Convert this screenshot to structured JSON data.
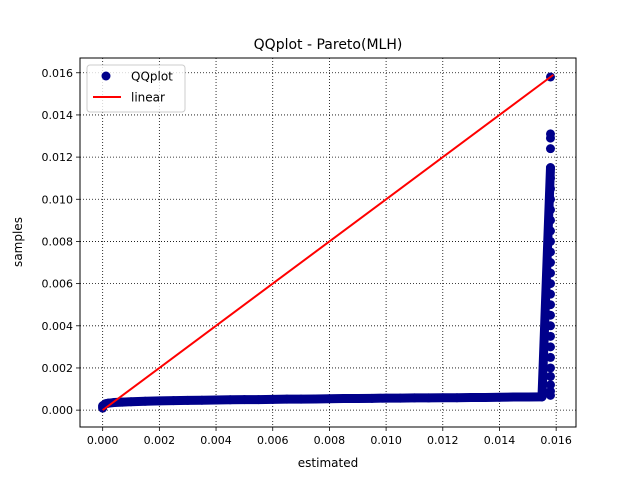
{
  "chart_data": {
    "type": "scatter",
    "title": "QQplot - Pareto(MLH)",
    "xlabel": "estimated",
    "ylabel": "samples",
    "xlim": [
      -0.0008,
      0.0167
    ],
    "ylim": [
      -0.0008,
      0.0167
    ],
    "xticks": [
      "0.000",
      "0.002",
      "0.004",
      "0.006",
      "0.008",
      "0.010",
      "0.012",
      "0.014",
      "0.016"
    ],
    "yticks": [
      "0.000",
      "0.002",
      "0.004",
      "0.006",
      "0.008",
      "0.010",
      "0.012",
      "0.014",
      "0.016"
    ],
    "grid": true,
    "grid_style": "dotted",
    "legend": {
      "position": "top-left",
      "entries": [
        "QQplot",
        "linear"
      ]
    },
    "series": [
      {
        "name": "QQplot",
        "kind": "scatter",
        "color": "#00008b",
        "x": [
          0.0,
          0.0,
          5e-05,
          0.0001,
          0.0002,
          0.0004,
          0.0007,
          0.001,
          0.0015,
          0.002,
          0.0025,
          0.003,
          0.0035,
          0.004,
          0.0045,
          0.005,
          0.0055,
          0.006,
          0.0065,
          0.007,
          0.0075,
          0.008,
          0.0085,
          0.009,
          0.0095,
          0.01,
          0.0105,
          0.011,
          0.0115,
          0.012,
          0.0125,
          0.013,
          0.0135,
          0.014,
          0.0145,
          0.015,
          0.0155,
          0.0158,
          0.0158,
          0.0158,
          0.0158,
          0.0158,
          0.0158,
          0.0158,
          0.0158,
          0.0158,
          0.0158,
          0.0158,
          0.0158,
          0.0158,
          0.0158,
          0.0158,
          0.0158,
          0.0158,
          0.0158,
          0.0158,
          0.0158,
          0.0158,
          0.0158,
          0.0158,
          0.0158,
          0.0158,
          0.0158,
          0.0158,
          0.0158
        ],
        "y": [
          0.0001,
          0.0002,
          0.00025,
          0.0003,
          0.00033,
          0.00036,
          0.00038,
          0.0004,
          0.00042,
          0.00044,
          0.00045,
          0.00046,
          0.00047,
          0.00048,
          0.00049,
          0.0005,
          0.0005,
          0.00051,
          0.00052,
          0.00052,
          0.00053,
          0.00054,
          0.00055,
          0.00055,
          0.00056,
          0.00057,
          0.00057,
          0.00058,
          0.00058,
          0.00059,
          0.00059,
          0.0006,
          0.0006,
          0.00061,
          0.00062,
          0.00062,
          0.00063,
          0.0007,
          0.0009,
          0.0012,
          0.0016,
          0.002,
          0.0025,
          0.003,
          0.0035,
          0.004,
          0.0045,
          0.005,
          0.0055,
          0.006,
          0.0065,
          0.007,
          0.0075,
          0.008,
          0.0085,
          0.009,
          0.0095,
          0.01,
          0.0105,
          0.011,
          0.0115,
          0.0124,
          0.0129,
          0.0131,
          0.0158
        ]
      },
      {
        "name": "linear",
        "kind": "line",
        "color": "#ff0000",
        "x": [
          0.0,
          0.0159
        ],
        "y": [
          0.0,
          0.0159
        ]
      }
    ]
  }
}
